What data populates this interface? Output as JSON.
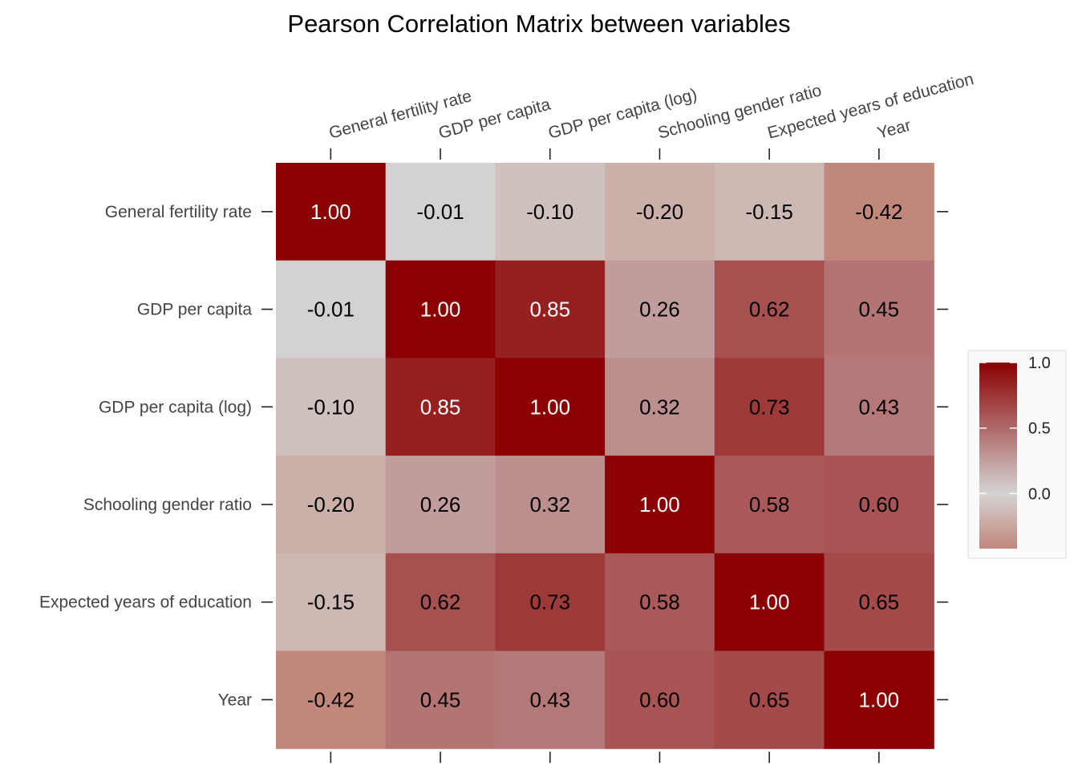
{
  "chart_data": {
    "type": "heatmap",
    "title": "Pearson Correlation Matrix between variables",
    "variables": [
      "General fertility rate",
      "GDP per capita",
      "GDP per capita (log)",
      "Schooling gender ratio",
      "Expected years of education",
      "Year"
    ],
    "values": [
      [
        1.0,
        -0.01,
        -0.1,
        -0.2,
        -0.15,
        -0.42
      ],
      [
        -0.01,
        1.0,
        0.85,
        0.26,
        0.62,
        0.45
      ],
      [
        -0.1,
        0.85,
        1.0,
        0.32,
        0.73,
        0.43
      ],
      [
        -0.2,
        0.26,
        0.32,
        1.0,
        0.58,
        0.6
      ],
      [
        -0.15,
        0.62,
        0.73,
        0.58,
        1.0,
        0.65
      ],
      [
        -0.42,
        0.45,
        0.43,
        0.6,
        0.65,
        1.0
      ]
    ],
    "labels": [
      [
        "1.00",
        "-0.01",
        "-0.10",
        "-0.20",
        "-0.15",
        "-0.42"
      ],
      [
        "-0.01",
        "1.00",
        "0.85",
        "0.26",
        "0.62",
        "0.45"
      ],
      [
        "-0.10",
        "0.85",
        "1.00",
        "0.32",
        "0.73",
        "0.43"
      ],
      [
        "-0.20",
        "0.26",
        "0.32",
        "1.00",
        "0.58",
        "0.60"
      ],
      [
        "-0.15",
        "0.62",
        "0.73",
        "0.58",
        "1.00",
        "0.65"
      ],
      [
        "-0.42",
        "0.45",
        "0.43",
        "0.60",
        "0.65",
        "1.00"
      ]
    ],
    "color_scale": {
      "low": "#c2877b",
      "mid": "#d3d3d3",
      "high": "#8b0000",
      "midpoint": 0.0,
      "limits": [
        -0.42,
        1.0
      ]
    },
    "legend": {
      "position": "right",
      "ticks": [
        "1.0",
        "0.5",
        "0.0"
      ],
      "tick_values": [
        1.0,
        0.5,
        0.0
      ]
    },
    "x_axis_position": "top",
    "grid": false
  }
}
